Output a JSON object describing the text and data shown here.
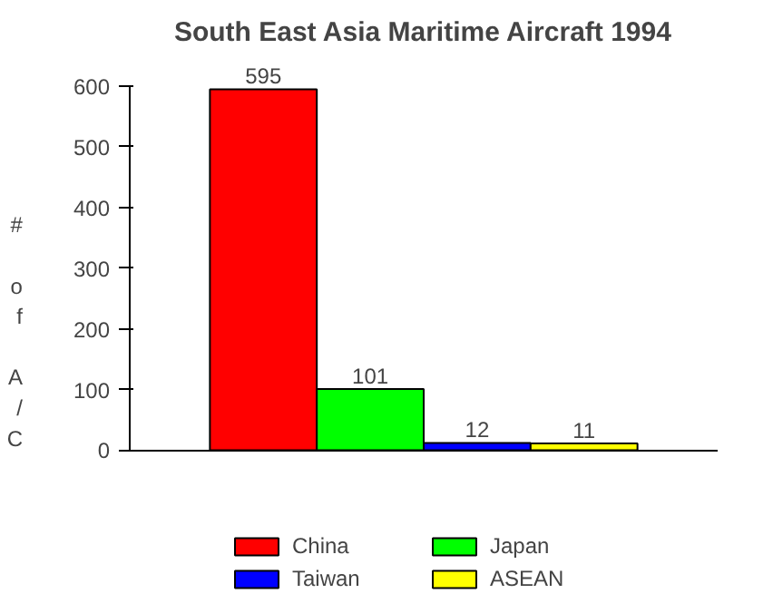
{
  "chart_data": {
    "type": "bar",
    "title": "South East Asia Maritime Aircraft 1994",
    "ylabel": "# of A/C",
    "categories": [
      null
    ],
    "series": [
      {
        "name": "China",
        "color": "#ff0000",
        "values": [
          595
        ]
      },
      {
        "name": "Japan",
        "color": "#00ff00",
        "values": [
          101
        ]
      },
      {
        "name": "Taiwan",
        "color": "#0000ff",
        "values": [
          12
        ]
      },
      {
        "name": "ASEAN",
        "color": "#ffff00",
        "values": [
          11
        ]
      }
    ],
    "ylim": [
      0,
      600
    ],
    "yticks": [
      0,
      100,
      200,
      300,
      400,
      500,
      600
    ],
    "data_labels": true,
    "grid": false,
    "legend": "bottom"
  }
}
